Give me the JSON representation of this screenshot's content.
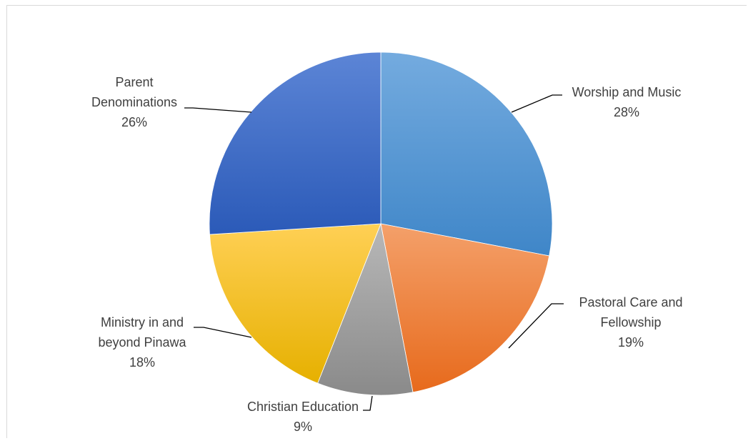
{
  "chart_data": {
    "type": "pie",
    "title": "",
    "start_angle_deg": 0,
    "direction": "clockwise",
    "categories": [
      "Worship and Music",
      "Pastoral Care and Fellowship",
      "Christian Education",
      "Ministry in and beyond Pinawa",
      "Parent Denominations"
    ],
    "values": [
      28,
      19,
      9,
      18,
      26
    ],
    "data_labels": [
      "28%",
      "19%",
      "9%",
      "18%",
      "26%"
    ],
    "label_lines": [
      [
        "Worship and Music",
        "28%"
      ],
      [
        "Pastoral Care and",
        "Fellowship",
        "19%"
      ],
      [
        "Christian Education",
        "9%"
      ],
      [
        "Ministry in and",
        "beyond Pinawa",
        "18%"
      ],
      [
        "Parent",
        "Denominations",
        "26%"
      ]
    ],
    "colors": [
      [
        "#74abdf",
        "#3f86c8"
      ],
      [
        "#f4a06a",
        "#e76a1c"
      ],
      [
        "#b8b8b8",
        "#8a8a8a"
      ],
      [
        "#ffd055",
        "#e6b000"
      ],
      [
        "#5c85d6",
        "#2b5ab8"
      ]
    ],
    "legend": "none"
  }
}
